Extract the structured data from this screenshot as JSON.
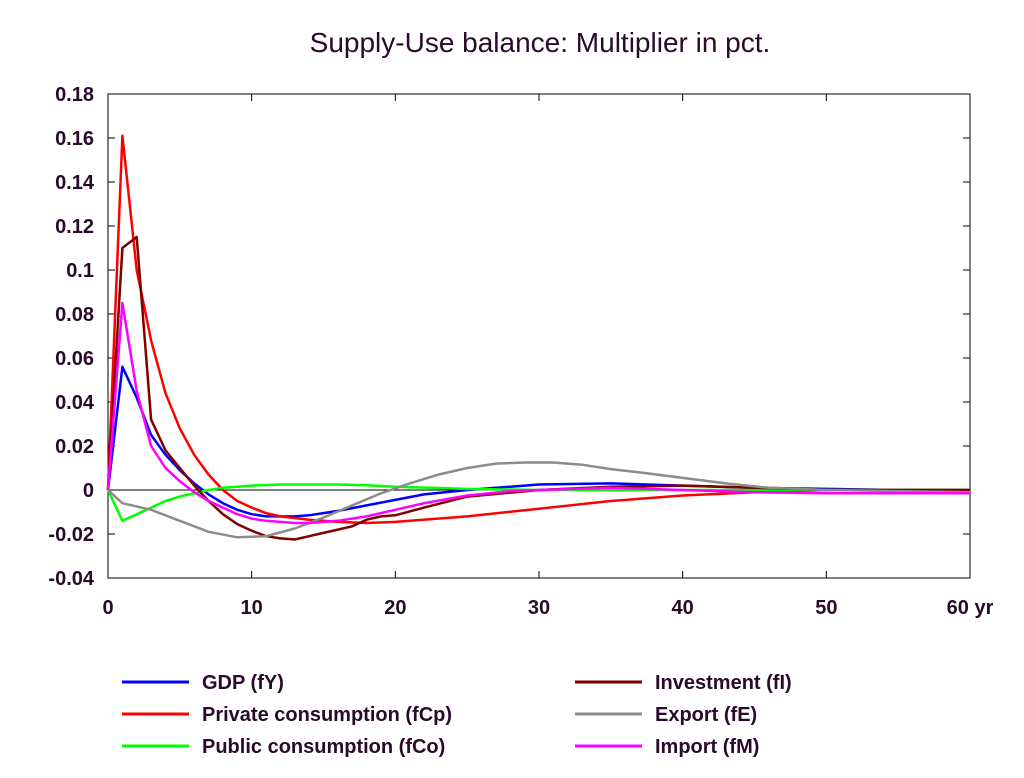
{
  "chart_data": {
    "type": "line",
    "title": "Supply-Use balance: Multiplier in pct.",
    "xlabel": "",
    "ylabel": "",
    "xlim": [
      0,
      60
    ],
    "ylim": [
      -0.04,
      0.18
    ],
    "x_ticks": [
      0,
      10,
      20,
      30,
      40,
      50,
      60
    ],
    "x_tick_labels": [
      "0",
      "10",
      "20",
      "30",
      "40",
      "50",
      "60 yr"
    ],
    "y_ticks": [
      -0.04,
      -0.02,
      0,
      0.02,
      0.04,
      0.06,
      0.08,
      0.1,
      0.12,
      0.14,
      0.16,
      0.18
    ],
    "y_tick_labels": [
      "-0.04",
      "-0.02",
      "0",
      "0.02",
      "0.04",
      "0.06",
      "0.08",
      "0.1",
      "0.12",
      "0.14",
      "0.16",
      "0.18"
    ],
    "grid": false,
    "legend_position": "bottom",
    "series": [
      {
        "name": "GDP (fY)",
        "color": "#0000ff",
        "x": [
          0,
          1,
          2,
          3,
          4,
          5,
          6,
          7,
          8,
          9,
          10,
          11,
          12,
          13,
          14,
          15,
          16,
          18,
          20,
          22,
          25,
          28,
          30,
          35,
          40,
          45,
          50,
          55,
          60
        ],
        "y": [
          0,
          0.056,
          0.042,
          0.025,
          0.016,
          0.009,
          0.003,
          -0.002,
          -0.006,
          -0.009,
          -0.011,
          -0.012,
          -0.012,
          -0.012,
          -0.0115,
          -0.0105,
          -0.0095,
          -0.007,
          -0.0045,
          -0.002,
          0,
          0.0015,
          0.0025,
          0.003,
          0.002,
          0.001,
          0.0005,
          0,
          0
        ]
      },
      {
        "name": "Private consumption (fCp)",
        "color": "#ff0000",
        "x": [
          0,
          1,
          2,
          3,
          4,
          5,
          6,
          7,
          8,
          9,
          10,
          11,
          12,
          14,
          16,
          18,
          20,
          25,
          30,
          35,
          40,
          45,
          50,
          55,
          60
        ],
        "y": [
          0,
          0.161,
          0.1,
          0.068,
          0.044,
          0.028,
          0.016,
          0.007,
          0,
          -0.005,
          -0.008,
          -0.0105,
          -0.012,
          -0.0135,
          -0.0145,
          -0.015,
          -0.0145,
          -0.012,
          -0.0085,
          -0.005,
          -0.0025,
          -0.001,
          0,
          0,
          0
        ]
      },
      {
        "name": "Public consumption (fCo)",
        "color": "#00ff00",
        "x": [
          0,
          1,
          2,
          3,
          4,
          5,
          6,
          7,
          8,
          9,
          10,
          12,
          14,
          16,
          18,
          20,
          25,
          30,
          35,
          40,
          45,
          50,
          55,
          60
        ],
        "y": [
          0,
          -0.014,
          -0.011,
          -0.008,
          -0.005,
          -0.003,
          -0.0015,
          0,
          0.001,
          0.0015,
          0.002,
          0.0025,
          0.0025,
          0.0025,
          0.0022,
          0.0015,
          0.0005,
          0,
          0,
          0,
          0,
          0,
          0,
          0
        ]
      },
      {
        "name": "Investment (fI)",
        "color": "#7f0000",
        "x": [
          0,
          1,
          2,
          3,
          4,
          5,
          6,
          7,
          8,
          9,
          10,
          11,
          12,
          13,
          14,
          15,
          16,
          17,
          18,
          19,
          20,
          22,
          25,
          30,
          35,
          40,
          45,
          50,
          55,
          60
        ],
        "y": [
          0,
          0.11,
          0.115,
          0.032,
          0.018,
          0.01,
          0.002,
          -0.005,
          -0.011,
          -0.0155,
          -0.0185,
          -0.021,
          -0.022,
          -0.0225,
          -0.021,
          -0.0195,
          -0.018,
          -0.0165,
          -0.0135,
          -0.012,
          -0.0115,
          -0.008,
          -0.003,
          0,
          0.0015,
          0.002,
          0.001,
          0,
          0,
          0
        ]
      },
      {
        "name": "Export (fE)",
        "color": "#8c8c8c",
        "x": [
          0,
          1,
          3,
          5,
          7,
          9,
          11,
          13,
          15,
          17,
          19,
          21,
          23,
          25,
          27,
          29,
          31,
          33,
          35,
          37,
          40,
          43,
          46,
          50,
          55,
          60
        ],
        "y": [
          0,
          -0.006,
          -0.009,
          -0.014,
          -0.019,
          -0.0215,
          -0.021,
          -0.0175,
          -0.0125,
          -0.007,
          -0.0015,
          0.003,
          0.007,
          0.01,
          0.012,
          0.0125,
          0.0125,
          0.0115,
          0.0095,
          0.008,
          0.0055,
          0.003,
          0.001,
          0,
          -0.0005,
          -0.001
        ]
      },
      {
        "name": "Import (fM)",
        "color": "#ff00ff",
        "x": [
          0,
          1,
          2,
          3,
          4,
          5,
          6,
          7,
          8,
          9,
          10,
          11,
          12,
          13,
          14,
          15,
          16,
          18,
          20,
          22,
          25,
          28,
          30,
          35,
          40,
          45,
          50,
          55,
          60
        ],
        "y": [
          0,
          0.085,
          0.045,
          0.02,
          0.01,
          0.004,
          -0.001,
          -0.005,
          -0.008,
          -0.011,
          -0.013,
          -0.014,
          -0.0145,
          -0.015,
          -0.015,
          -0.0145,
          -0.014,
          -0.012,
          -0.009,
          -0.006,
          -0.0025,
          -0.0005,
          0,
          0.001,
          0,
          -0.001,
          -0.0015,
          -0.0015,
          -0.0015
        ]
      }
    ]
  }
}
